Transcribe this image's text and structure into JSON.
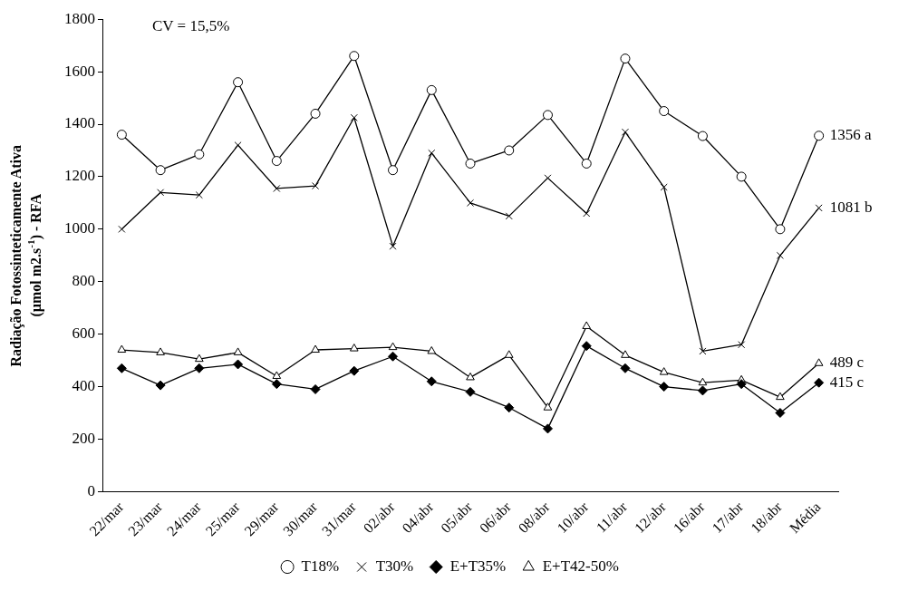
{
  "chart_data": {
    "type": "line",
    "ylabel": "Radiação Fotossinteticamente Ativa\n(µmol m2.s$^{-1}$) - RFA",
    "categories": [
      "22/mar",
      "23/mar",
      "24/mar",
      "25/mar",
      "29/mar",
      "30/mar",
      "31/mar",
      "02/abr",
      "04/abr",
      "05/abr",
      "06/abr",
      "08/abr",
      "10/abr",
      "11/abr",
      "12/abr",
      "16/abr",
      "17/abr",
      "18/abr",
      "Média"
    ],
    "series": [
      {
        "name": "T18%",
        "color": "#000000",
        "marker": "circle",
        "values": [
          1360,
          1225,
          1285,
          1560,
          1260,
          1440,
          1660,
          1225,
          1530,
          1250,
          1300,
          1435,
          1250,
          1650,
          1450,
          1355,
          1200,
          1000,
          1356
        ]
      },
      {
        "name": "T30%",
        "color": "#000000",
        "marker": "cross",
        "values": [
          1000,
          1140,
          1130,
          1320,
          1155,
          1165,
          1425,
          935,
          1290,
          1100,
          1050,
          1195,
          1060,
          1370,
          1160,
          535,
          560,
          900,
          1081
        ]
      },
      {
        "name": "E+T35%",
        "color": "#000000",
        "marker": "diamond",
        "values": [
          470,
          405,
          470,
          485,
          410,
          390,
          460,
          515,
          420,
          380,
          320,
          240,
          555,
          470,
          400,
          385,
          410,
          300,
          415
        ]
      },
      {
        "name": "E+T42-50%",
        "color": "#000000",
        "marker": "triangle",
        "values": [
          540,
          530,
          505,
          530,
          440,
          540,
          545,
          550,
          535,
          435,
          520,
          320,
          630,
          520,
          455,
          415,
          425,
          360,
          489
        ]
      }
    ],
    "ylim": [
      0,
      1800
    ],
    "yticks": [
      0,
      200,
      400,
      600,
      800,
      1000,
      1200,
      1400,
      1600,
      1800
    ],
    "grid": false,
    "legend": "bottom",
    "annotations": [
      "CV = 15,5%",
      {
        "text": "1356 a",
        "x": "Média",
        "y": 1356
      },
      {
        "text": "1081 b",
        "x": "Média",
        "y": 1081
      },
      {
        "text": "489 c",
        "x": "Média",
        "y": 489
      },
      {
        "text": "415 c",
        "x": "Média",
        "y": 415
      }
    ]
  }
}
